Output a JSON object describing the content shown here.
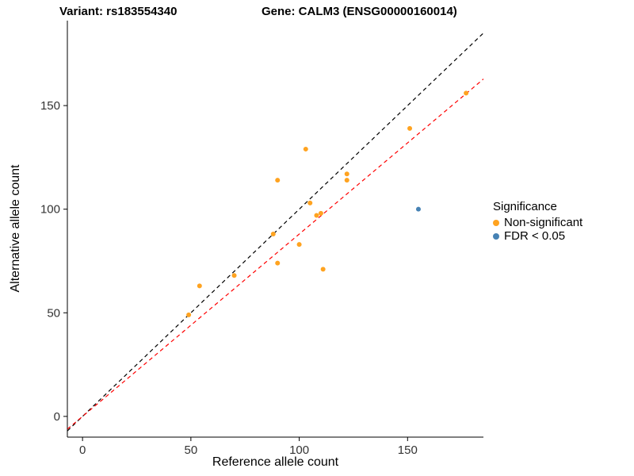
{
  "titles": {
    "variant": "Variant: rs183554340",
    "gene": "Gene: CALM3 (ENSG00000160014)"
  },
  "chart_data": {
    "type": "scatter",
    "title": "Variant: rs183554340   Gene: CALM3 (ENSG00000160014)",
    "xlabel": "Reference allele count",
    "ylabel": "Alternative allele count",
    "xlim": [
      -7,
      185
    ],
    "ylim": [
      -10,
      191
    ],
    "xticks": [
      0,
      50,
      100,
      150
    ],
    "yticks": [
      0,
      50,
      100,
      150
    ],
    "grid": false,
    "legend_title": "Significance",
    "legend_position": "right",
    "series": [
      {
        "name": "Non-significant",
        "color": "#FFA320",
        "points": [
          [
            49,
            49
          ],
          [
            54,
            63
          ],
          [
            70,
            68
          ],
          [
            88,
            88
          ],
          [
            90,
            74
          ],
          [
            90,
            114
          ],
          [
            100,
            83
          ],
          [
            103,
            129
          ],
          [
            105,
            103
          ],
          [
            108,
            97
          ],
          [
            110,
            98
          ],
          [
            111,
            71
          ],
          [
            122,
            114
          ],
          [
            122,
            117
          ],
          [
            151,
            139
          ],
          [
            177,
            156
          ]
        ]
      },
      {
        "name": "FDR < 0.05",
        "color": "#4682B4",
        "points": [
          [
            155,
            100
          ]
        ]
      }
    ],
    "lines": [
      {
        "name": "identity-line",
        "slope": 1,
        "intercept": 0,
        "color": "#000000",
        "dash": "5,4"
      },
      {
        "name": "fit-line",
        "slope": 0.88,
        "intercept": 0,
        "color": "#FF0000",
        "dash": "5,4"
      }
    ],
    "colors": {
      "axis": "#000000",
      "tick_text": "#333333"
    }
  }
}
